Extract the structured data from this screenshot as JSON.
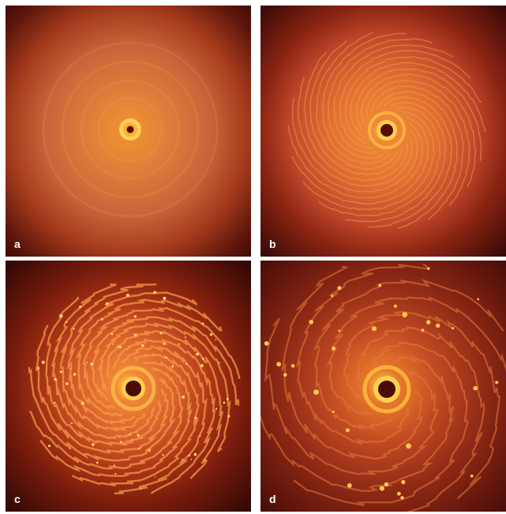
{
  "panels": [
    {
      "id": "a",
      "label": "a",
      "stage": 0
    },
    {
      "id": "b",
      "label": "b",
      "stage": 1
    },
    {
      "id": "c",
      "label": "c",
      "stage": 2
    },
    {
      "id": "d",
      "label": "d",
      "stage": 3
    }
  ],
  "colors": {
    "background": "#ffffff",
    "outer": "#3a0808",
    "disk": "#b84a1c",
    "arm": "#f08a3a",
    "core": "#ffd060",
    "center": "#4a0c04"
  }
}
